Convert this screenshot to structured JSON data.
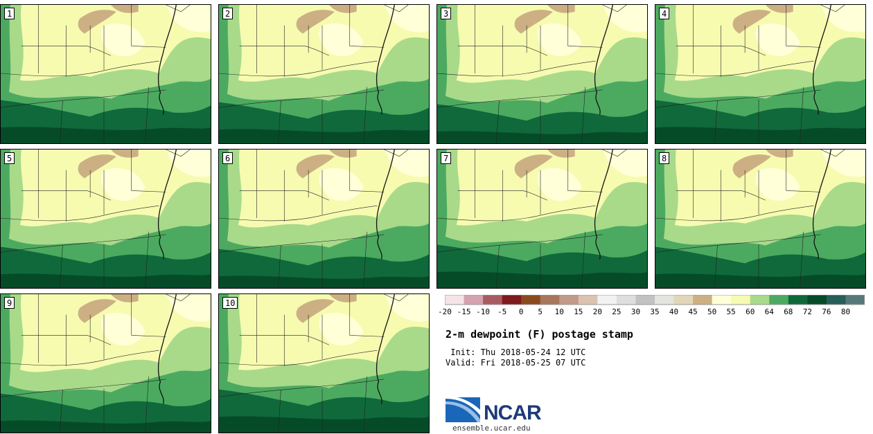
{
  "panels": [
    {
      "label": "1"
    },
    {
      "label": "2"
    },
    {
      "label": "3"
    },
    {
      "label": "4"
    },
    {
      "label": "5"
    },
    {
      "label": "6"
    },
    {
      "label": "7"
    },
    {
      "label": "8"
    },
    {
      "label": "9"
    },
    {
      "label": "10"
    }
  ],
  "colorbar": {
    "ticks": [
      "-20",
      "-15",
      "-10",
      "-5",
      "0",
      "5",
      "10",
      "15",
      "20",
      "25",
      "30",
      "35",
      "40",
      "45",
      "50",
      "55",
      "60",
      "64",
      "68",
      "72",
      "76",
      "80"
    ],
    "colors": [
      "#f4e4e8",
      "#d4a3af",
      "#a85c62",
      "#7f1a1e",
      "#8a4a1e",
      "#a8765a",
      "#c29a88",
      "#dcc2b0",
      "#f2f2f2",
      "#dedede",
      "#c2c2c2",
      "#e4e4de",
      "#e2d6b8",
      "#ccb084",
      "#ffffd8",
      "#f6fbb0",
      "#a8da8a",
      "#4caa60",
      "#10693a",
      "#064b28",
      "#275e57",
      "#57787a"
    ]
  },
  "info": {
    "title": "2-m dewpoint (F) postage stamp",
    "init": " Init: Thu 2018-05-24 12 UTC",
    "valid": "Valid: Fri 2018-05-25 07 UTC"
  },
  "logo": {
    "text": "NCAR",
    "url": "ensemble.ucar.edu"
  }
}
